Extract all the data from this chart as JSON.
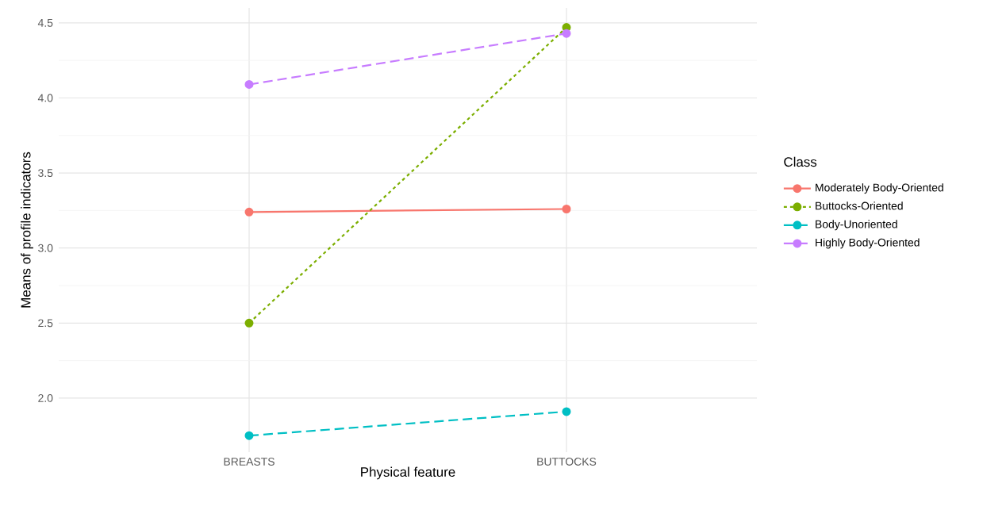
{
  "chart_data": {
    "type": "line",
    "xlabel": "Physical feature",
    "ylabel": "Means of profile indicators",
    "legend_title": "Class",
    "categories": [
      "BREASTS",
      "BUTTOCKS"
    ],
    "series": [
      {
        "name": "Moderately Body-Oriented",
        "color": "#f8766d",
        "values": [
          3.24,
          3.26
        ],
        "line_style": "solid"
      },
      {
        "name": "Buttocks-Oriented",
        "color": "#7cae00",
        "values": [
          2.5,
          4.47
        ],
        "line_style": "dotted"
      },
      {
        "name": "Body-Unoriented",
        "color": "#00bfc4",
        "values": [
          1.75,
          1.91
        ],
        "line_style": "dashed"
      },
      {
        "name": "Highly Body-Oriented",
        "color": "#c77cff",
        "values": [
          4.09,
          4.43
        ],
        "line_style": "dashed"
      }
    ],
    "ylim": [
      1.64,
      4.6
    ],
    "yticks": [
      {
        "value": 2,
        "label": "2.0"
      },
      2.5,
      {
        "value": 3,
        "label": "3.0"
      },
      3.5,
      {
        "value": 4,
        "label": "4.0"
      },
      4.5
    ],
    "grid": true,
    "legend": "right",
    "marker": "circle"
  }
}
